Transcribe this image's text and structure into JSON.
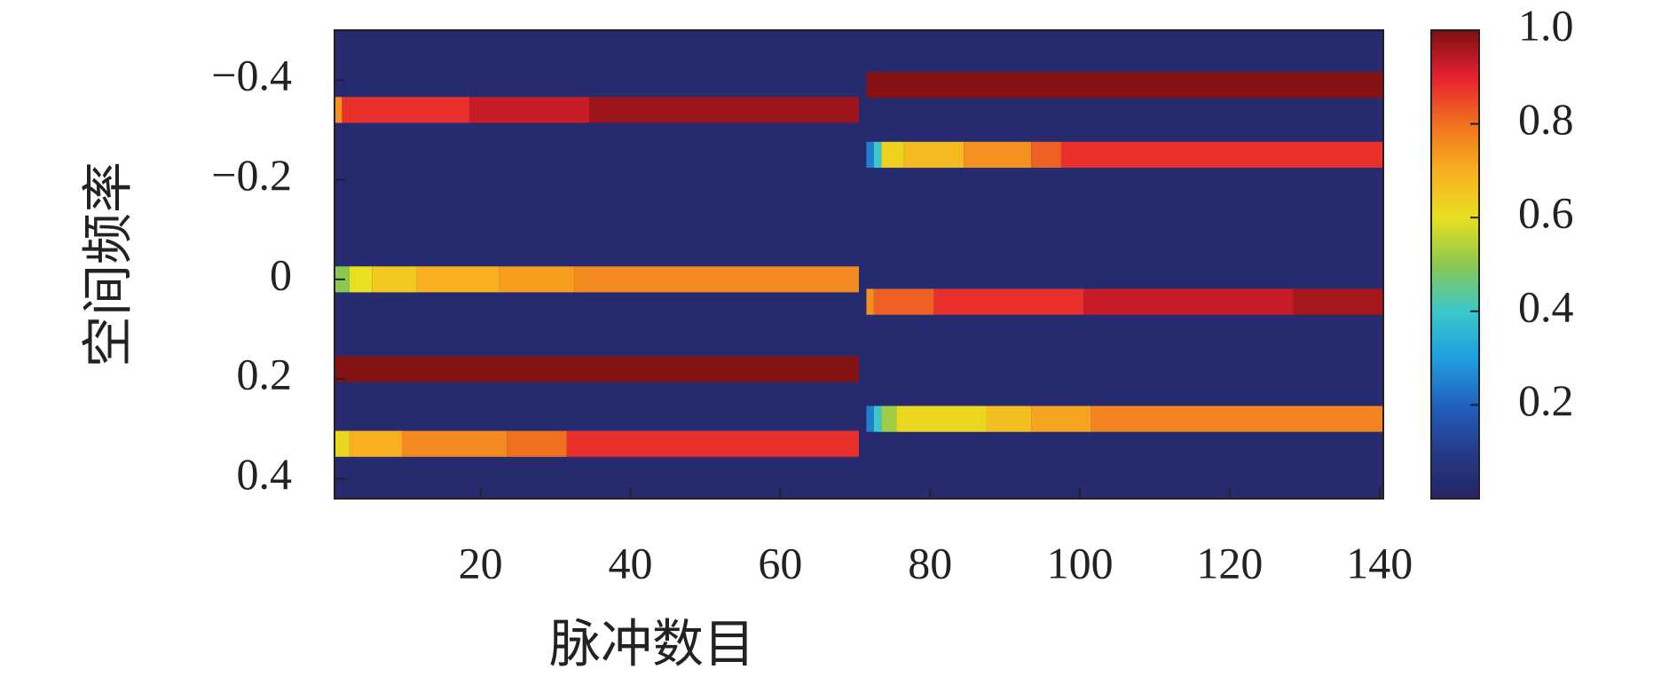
{
  "chart_data": {
    "type": "heatmap",
    "ylabel": "空间频率",
    "xlabel": "脉冲数目",
    "xlim": [
      0.5,
      140.5
    ],
    "ylim": [
      -0.5,
      0.44
    ],
    "xticks": [
      20,
      40,
      60,
      80,
      100,
      120,
      140
    ],
    "yticks": [
      {
        "value": -0.4,
        "label": "−0.4"
      },
      {
        "value": -0.2,
        "label": "−0.2"
      },
      0,
      0.2,
      0.4
    ],
    "clim": [
      0,
      1
    ],
    "cticks": [
      0.2,
      0.4,
      0.6,
      0.8,
      {
        "value": 1.0,
        "label": "1.0"
      }
    ],
    "colormap": [
      "#272463",
      "#253a8a",
      "#2060c0",
      "#1f9fe0",
      "#3cc8c8",
      "#8cc850",
      "#e8e020",
      "#f8b020",
      "#f07020",
      "#e82030",
      "#7a1010"
    ],
    "background": 0.03,
    "tracks": [
      {
        "y": -0.34,
        "segments": [
          {
            "x": [
              0.5,
              1.5
            ],
            "value": 0.75
          },
          {
            "x": [
              1.5,
              18.5
            ],
            "value": 0.88
          },
          {
            "x": [
              18.5,
              34.5
            ],
            "value": 0.93
          },
          {
            "x": [
              34.5,
              70.5
            ],
            "value": 0.97
          }
        ]
      },
      {
        "y": 0,
        "segments": [
          {
            "x": [
              0.5,
              2.5
            ],
            "value": 0.5
          },
          {
            "x": [
              2.5,
              5.5
            ],
            "value": 0.6
          },
          {
            "x": [
              5.5,
              11.5
            ],
            "value": 0.65
          },
          {
            "x": [
              11.5,
              22.5
            ],
            "value": 0.7
          },
          {
            "x": [
              22.5,
              32.5
            ],
            "value": 0.73
          },
          {
            "x": [
              32.5,
              70.5
            ],
            "value": 0.76
          }
        ]
      },
      {
        "y": 0.18,
        "segments": [
          {
            "x": [
              0.5,
              70.5
            ],
            "value": 0.99
          }
        ]
      },
      {
        "y": 0.33,
        "segments": [
          {
            "x": [
              0.5,
              2.5
            ],
            "value": 0.62
          },
          {
            "x": [
              2.5,
              9.5
            ],
            "value": 0.7
          },
          {
            "x": [
              9.5,
              23.5
            ],
            "value": 0.76
          },
          {
            "x": [
              23.5,
              31.5
            ],
            "value": 0.8
          },
          {
            "x": [
              31.5,
              70.5
            ],
            "value": 0.88
          }
        ]
      },
      {
        "y": -0.39,
        "segments": [
          {
            "x": [
              71.5,
              140.5
            ],
            "value": 0.99
          }
        ]
      },
      {
        "y": -0.25,
        "segments": [
          {
            "x": [
              71.5,
              72.5
            ],
            "value": 0.25
          },
          {
            "x": [
              72.5,
              73.5
            ],
            "value": 0.4
          },
          {
            "x": [
              73.5,
              76.5
            ],
            "value": 0.63
          },
          {
            "x": [
              76.5,
              84.5
            ],
            "value": 0.68
          },
          {
            "x": [
              84.5,
              93.5
            ],
            "value": 0.75
          },
          {
            "x": [
              93.5,
              97.5
            ],
            "value": 0.82
          },
          {
            "x": [
              97.5,
              140.5
            ],
            "value": 0.88
          }
        ]
      },
      {
        "y": 0.045,
        "segments": [
          {
            "x": [
              71.5,
              72.5
            ],
            "value": 0.75
          },
          {
            "x": [
              72.5,
              80.5
            ],
            "value": 0.82
          },
          {
            "x": [
              80.5,
              100.5
            ],
            "value": 0.88
          },
          {
            "x": [
              100.5,
              128.5
            ],
            "value": 0.93
          },
          {
            "x": [
              128.5,
              140.5
            ],
            "value": 0.96
          }
        ]
      },
      {
        "y": 0.28,
        "segments": [
          {
            "x": [
              71.5,
              72.5
            ],
            "value": 0.25
          },
          {
            "x": [
              72.5,
              73.5
            ],
            "value": 0.4
          },
          {
            "x": [
              73.5,
              75.5
            ],
            "value": 0.52
          },
          {
            "x": [
              75.5,
              87.5
            ],
            "value": 0.62
          },
          {
            "x": [
              87.5,
              93.5
            ],
            "value": 0.67
          },
          {
            "x": [
              93.5,
              101.5
            ],
            "value": 0.72
          },
          {
            "x": [
              101.5,
              140.5
            ],
            "value": 0.77
          }
        ]
      }
    ]
  }
}
